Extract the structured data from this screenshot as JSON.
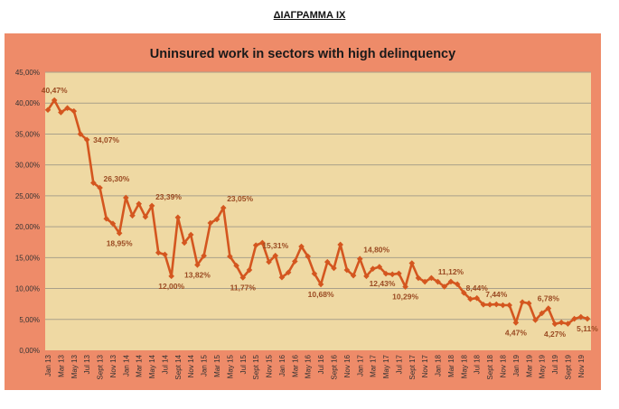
{
  "page": {
    "heading": "ΔΙΑΓΡΑΜΜΑ ΙΧ"
  },
  "colors": {
    "frame": "#EE8B69",
    "plot": "#EFD9A3",
    "line": "#D4561F",
    "label": "#9A4A22",
    "grid": "#A9A08A"
  },
  "chart_data": {
    "type": "line",
    "title": "Uninsured work in sectors with high delinquency",
    "xlabel": "",
    "ylabel": "",
    "ylim": [
      0,
      45
    ],
    "yticks": [
      0,
      5,
      10,
      15,
      20,
      25,
      30,
      35,
      40,
      45
    ],
    "ytick_labels": [
      "0,00%",
      "5,00%",
      "10,00%",
      "15,00%",
      "20,00%",
      "25,00%",
      "30,00%",
      "35,00%",
      "40,00%",
      "45,00%"
    ],
    "grid": true,
    "x_tick_every": 2,
    "x": [
      "Jan 13",
      "Feb 13",
      "Mar 13",
      "Apr 13",
      "May 13",
      "Jun 13",
      "Jul 13",
      "Aug 13",
      "Sept 13",
      "Oct 13",
      "Nov 13",
      "Dec 13",
      "Jan 14",
      "Feb 14",
      "Mar 14",
      "Apr 14",
      "May 14",
      "Jun 14",
      "Jul 14",
      "Aug 14",
      "Sept 14",
      "Oct 14",
      "Nov 14",
      "Dec 14",
      "Jan 15",
      "Feb 15",
      "Mar 15",
      "Apr 15",
      "May 15",
      "Jun 15",
      "Jul 15",
      "Aug 15",
      "Sept 15",
      "Oct 15",
      "Nov 15",
      "Dec 15",
      "Jan 16",
      "Feb 16",
      "Mar 16",
      "Apr 16",
      "May 16",
      "Jun 16",
      "Jul 16",
      "Aug 16",
      "Sept 16",
      "Oct 16",
      "Nov 16",
      "Dec 16",
      "Jan 17",
      "Feb 17",
      "Mar 17",
      "Apr 17",
      "May 17",
      "Jun 17",
      "Jul 17",
      "Aug 17",
      "Sept 17",
      "Oct 17",
      "Nov 17",
      "Dec 17",
      "Jan 18",
      "Feb 18",
      "Mar 18",
      "Apr 18",
      "May 18",
      "Jun 18",
      "Jul 18",
      "Aug 18",
      "Sept 18",
      "Oct 18",
      "Nov 18",
      "Dec 18",
      "Jan 19",
      "Feb 19",
      "Mar 19",
      "Apr 19",
      "May 19",
      "Jun 19",
      "Jul 19",
      "Aug 19",
      "Sept 19",
      "Oct 19",
      "Nov 19",
      "Dec 19"
    ],
    "series": [
      {
        "name": "Uninsured work",
        "values": [
          38.9,
          40.47,
          38.5,
          39.2,
          38.7,
          35.0,
          34.07,
          27.1,
          26.3,
          21.3,
          20.5,
          18.95,
          24.7,
          21.8,
          23.7,
          21.6,
          23.39,
          15.8,
          15.5,
          12.0,
          21.5,
          17.4,
          18.7,
          13.82,
          15.3,
          20.6,
          21.2,
          23.05,
          15.2,
          13.7,
          11.77,
          13.0,
          17.0,
          17.4,
          14.3,
          15.31,
          11.8,
          12.6,
          14.4,
          16.8,
          15.2,
          12.4,
          10.68,
          14.3,
          13.3,
          17.1,
          13.0,
          12.1,
          14.8,
          12.0,
          13.2,
          13.5,
          12.4,
          12.3,
          12.43,
          10.29,
          14.1,
          11.7,
          11.1,
          11.7,
          11.1,
          10.3,
          11.12,
          10.7,
          9.3,
          8.3,
          8.44,
          7.4,
          7.4,
          7.44,
          7.3,
          7.3,
          4.47,
          7.8,
          7.6,
          4.9,
          6.0,
          6.78,
          4.27,
          4.5,
          4.3,
          5.1,
          5.4,
          5.11
        ]
      }
    ],
    "data_labels": [
      {
        "index": 1,
        "text": "40,47%",
        "pos": "above"
      },
      {
        "index": 6,
        "text": "34,07%",
        "pos": "right"
      },
      {
        "index": 8,
        "text": "26,30%",
        "pos": "above-right"
      },
      {
        "index": 11,
        "text": "18,95%",
        "pos": "below"
      },
      {
        "index": 16,
        "text": "23,39%",
        "pos": "above-right"
      },
      {
        "index": 19,
        "text": "12,00%",
        "pos": "below"
      },
      {
        "index": 23,
        "text": "13,82%",
        "pos": "below"
      },
      {
        "index": 27,
        "text": "23,05%",
        "pos": "above-right"
      },
      {
        "index": 30,
        "text": "11,77%",
        "pos": "below"
      },
      {
        "index": 35,
        "text": "15,31%",
        "pos": "above"
      },
      {
        "index": 42,
        "text": "10,68%",
        "pos": "below"
      },
      {
        "index": 48,
        "text": "14,80%",
        "pos": "above-right"
      },
      {
        "index": 54,
        "text": "12,43%",
        "pos": "below-left"
      },
      {
        "index": 55,
        "text": "10,29%",
        "pos": "below"
      },
      {
        "index": 62,
        "text": "11,12%",
        "pos": "above"
      },
      {
        "index": 66,
        "text": "8,44%",
        "pos": "above"
      },
      {
        "index": 69,
        "text": "7,44%",
        "pos": "above"
      },
      {
        "index": 72,
        "text": "4,47%",
        "pos": "below"
      },
      {
        "index": 77,
        "text": "6,78%",
        "pos": "above"
      },
      {
        "index": 78,
        "text": "4,27%",
        "pos": "below"
      },
      {
        "index": 83,
        "text": "5,11%",
        "pos": "below"
      }
    ]
  }
}
